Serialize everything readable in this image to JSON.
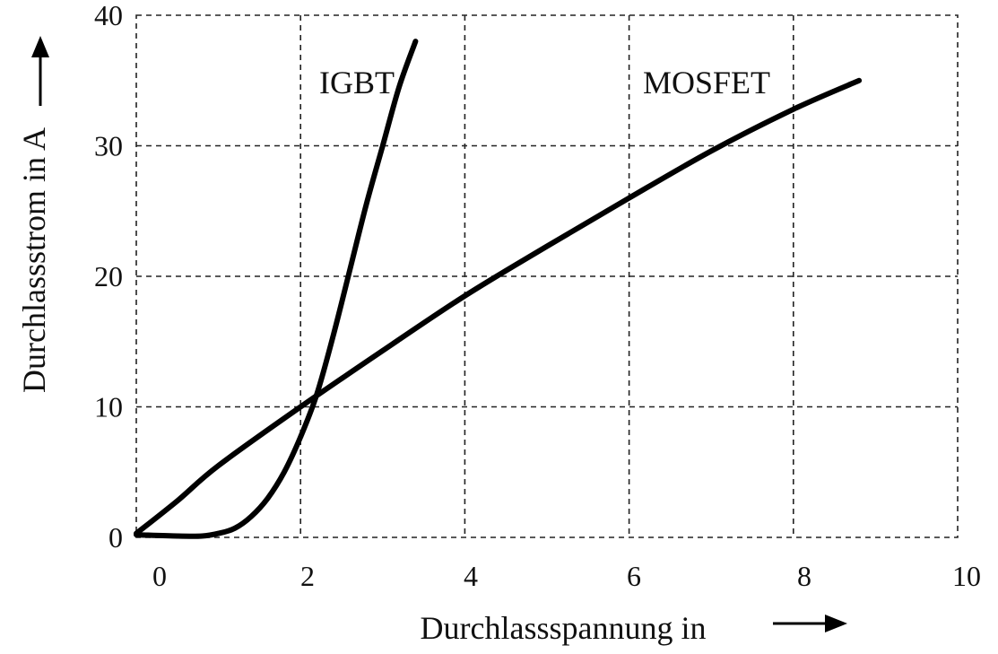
{
  "chart_data": {
    "type": "line",
    "xlabel": "Durchlassspannung in",
    "ylabel": "Durchlassstrom in A",
    "xlim": [
      0,
      10
    ],
    "ylim": [
      0,
      40
    ],
    "x_ticks": [
      "0",
      "2",
      "4",
      "6",
      "8",
      "10"
    ],
    "y_ticks": [
      "0",
      "10",
      "20",
      "30",
      "40"
    ],
    "grid": true,
    "series": [
      {
        "name": "IGBT",
        "color": "#000000",
        "points": [
          [
            0.0,
            0.2
          ],
          [
            0.5,
            0.1
          ],
          [
            0.8,
            0.1
          ],
          [
            1.0,
            0.3
          ],
          [
            1.2,
            0.7
          ],
          [
            1.4,
            1.6
          ],
          [
            1.6,
            3.0
          ],
          [
            1.8,
            5.0
          ],
          [
            2.0,
            7.7
          ],
          [
            2.2,
            11.0
          ],
          [
            2.4,
            15.5
          ],
          [
            2.6,
            20.5
          ],
          [
            2.8,
            25.5
          ],
          [
            3.0,
            30.0
          ],
          [
            3.2,
            34.5
          ],
          [
            3.4,
            38.0
          ]
        ]
      },
      {
        "name": "MOSFET",
        "color": "#000000",
        "points": [
          [
            0.0,
            0.3
          ],
          [
            0.5,
            2.8
          ],
          [
            1.0,
            5.5
          ],
          [
            2.0,
            10.0
          ],
          [
            3.0,
            14.3
          ],
          [
            4.0,
            18.5
          ],
          [
            5.0,
            22.3
          ],
          [
            6.0,
            26.0
          ],
          [
            7.0,
            29.6
          ],
          [
            8.0,
            32.8
          ],
          [
            8.8,
            35.0
          ]
        ]
      }
    ]
  }
}
